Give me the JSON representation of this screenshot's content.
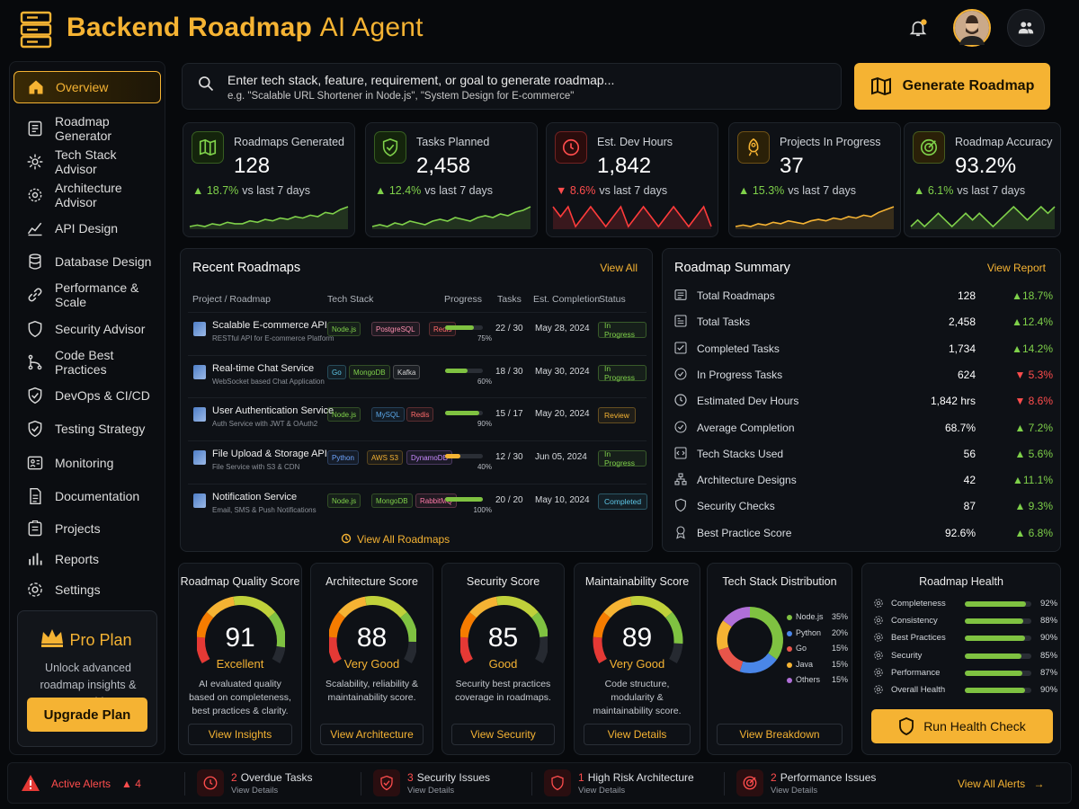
{
  "header": {
    "title_bold": "Backend Roadmap",
    "title_light": "AI Agent",
    "logo_icon": "server-stack-icon",
    "notification_icon": "bell-icon",
    "team_icon": "users-icon"
  },
  "sidebar": {
    "items": [
      {
        "label": "Overview",
        "icon": "home-icon"
      },
      {
        "label": "Roadmap Generator",
        "icon": "roadmap-icon"
      },
      {
        "label": "Tech Stack Advisor",
        "icon": "gear-icon"
      },
      {
        "label": "Architecture Advisor",
        "icon": "cog-shield-icon"
      },
      {
        "label": "API Design",
        "icon": "api-chart-icon"
      },
      {
        "label": "Database Design",
        "icon": "database-icon"
      },
      {
        "label": "Performance & Scale",
        "icon": "link-icon"
      },
      {
        "label": "Security Advisor",
        "icon": "shield-icon"
      },
      {
        "label": "Code Best Practices",
        "icon": "branch-icon"
      },
      {
        "label": "DevOps & CI/CD",
        "icon": "shield-check-icon"
      },
      {
        "label": "Testing Strategy",
        "icon": "check-shield-icon"
      },
      {
        "label": "Monitoring",
        "icon": "monitor-icon"
      },
      {
        "label": "Documentation",
        "icon": "document-icon"
      },
      {
        "label": "Projects",
        "icon": "folder-icon"
      },
      {
        "label": "Reports",
        "icon": "bar-chart-icon"
      },
      {
        "label": "Settings",
        "icon": "settings-icon"
      }
    ],
    "pro": {
      "title": "Pro Plan",
      "desc": "Unlock advanced roadmap insights & expert guidance",
      "button": "Upgrade Plan"
    }
  },
  "search": {
    "placeholder": "Enter tech stack, feature, requirement, or goal to generate roadmap...",
    "example": "e.g. \"Scalable URL Shortener in Node.js\", \"System Design for E-commerce\""
  },
  "generate_button": "Generate Roadmap",
  "stats": [
    {
      "label": "Roadmaps Generated",
      "value": "128",
      "change": "▲ 18.7%",
      "suffix": "vs last 7 days",
      "trend": "up",
      "color": "#7fd14a",
      "icon": "map-icon",
      "spark": [
        4,
        5,
        4,
        6,
        5,
        7,
        6,
        6,
        8,
        7,
        9,
        8,
        10,
        9,
        11,
        10,
        12,
        11,
        14,
        13,
        16,
        18
      ]
    },
    {
      "label": "Tasks Planned",
      "value": "2,458",
      "change": "▲ 12.4%",
      "suffix": "vs last 7 days",
      "trend": "up",
      "color": "#7fd14a",
      "icon": "shield-check-icon",
      "spark": [
        5,
        6,
        5,
        7,
        6,
        8,
        7,
        6,
        8,
        9,
        8,
        10,
        9,
        8,
        10,
        11,
        10,
        12,
        11,
        13,
        14,
        16
      ]
    },
    {
      "label": "Est. Dev Hours",
      "value": "1,842",
      "change": "▼ 8.6%",
      "suffix": "vs last 7 days",
      "trend": "down",
      "color": "#ff4d4d",
      "icon": "clock-icon",
      "spark": [
        8,
        7,
        8,
        6,
        7,
        8,
        7,
        6,
        7,
        8,
        6,
        7,
        8,
        7,
        6,
        7,
        8,
        7,
        6,
        7,
        8,
        6
      ]
    },
    {
      "label": "Projects In Progress",
      "value": "37",
      "change": "▲ 15.3%",
      "suffix": "vs last 7 days",
      "trend": "up",
      "color": "#f5b333",
      "icon": "rocket-icon",
      "spark": [
        3,
        4,
        3,
        5,
        4,
        6,
        5,
        7,
        6,
        5,
        7,
        8,
        7,
        9,
        8,
        10,
        9,
        11,
        10,
        13,
        15,
        17
      ]
    },
    {
      "label": "Roadmap Accuracy",
      "value": "93.2%",
      "change": "▲ 6.1%",
      "suffix": "vs last 7 days",
      "trend": "up",
      "color": "#7fd14a",
      "icon": "target-icon",
      "spark": [
        8,
        9,
        8,
        9,
        10,
        9,
        8,
        9,
        10,
        9,
        10,
        9,
        8,
        9,
        10,
        11,
        10,
        9,
        10,
        11,
        10,
        11
      ]
    }
  ],
  "recent": {
    "title": "Recent Roadmaps",
    "view_all": "View All",
    "columns": [
      "Project / Roadmap",
      "Tech Stack",
      "Progress",
      "Tasks",
      "Est. Completion",
      "Status"
    ],
    "rows": [
      {
        "name": "Scalable E-commerce API",
        "desc": "RESTful API for E-commerce Platform",
        "tags": [
          "Node.js",
          "PostgreSQL",
          "Redis"
        ],
        "progress": 75,
        "tasks": "22 / 30",
        "date": "May 28, 2024",
        "status": "In Progress"
      },
      {
        "name": "Real-time Chat Service",
        "desc": "WebSocket based Chat Application",
        "tags": [
          "Go",
          "MongoDB",
          "Kafka"
        ],
        "progress": 60,
        "tasks": "18 / 30",
        "date": "May 30, 2024",
        "status": "In Progress"
      },
      {
        "name": "User Authentication Service",
        "desc": "Auth Service with JWT & OAuth2",
        "tags": [
          "Node.js",
          "MySQL",
          "Redis"
        ],
        "progress": 90,
        "tasks": "15 / 17",
        "date": "May 20, 2024",
        "status": "Review"
      },
      {
        "name": "File Upload & Storage API",
        "desc": "File Service with S3 & CDN",
        "tags": [
          "Python",
          "AWS S3",
          "DynamoDB"
        ],
        "progress": 40,
        "tasks": "12 / 30",
        "date": "Jun 05, 2024",
        "status": "In Progress"
      },
      {
        "name": "Notification Service",
        "desc": "Email, SMS & Push Notifications",
        "tags": [
          "Node.js",
          "MongoDB",
          "RabbitMQ"
        ],
        "progress": 100,
        "tasks": "20 / 20",
        "date": "May 10, 2024",
        "status": "Completed"
      }
    ],
    "view_all_roadmaps": "View All Roadmaps"
  },
  "summary": {
    "title": "Roadmap Summary",
    "view_report": "View Report",
    "rows": [
      {
        "label": "Total Roadmaps",
        "value": "128",
        "change": "▲18.7%",
        "trend": "up",
        "icon": "list-icon"
      },
      {
        "label": "Total Tasks",
        "value": "2,458",
        "change": "▲12.4%",
        "trend": "up",
        "icon": "tasks-icon"
      },
      {
        "label": "Completed Tasks",
        "value": "1,734",
        "change": "▲14.2%",
        "trend": "up",
        "icon": "checkbox-icon"
      },
      {
        "label": "In Progress Tasks",
        "value": "624",
        "change": "▼ 5.3%",
        "trend": "down",
        "icon": "progress-icon"
      },
      {
        "label": "Estimated Dev Hours",
        "value": "1,842 hrs",
        "change": "▼ 8.6%",
        "trend": "down",
        "icon": "clock-icon"
      },
      {
        "label": "Average Completion",
        "value": "68.7%",
        "change": "▲ 7.2%",
        "trend": "up",
        "icon": "check-circle-icon"
      },
      {
        "label": "Tech Stacks Used",
        "value": "56",
        "change": "▲ 5.6%",
        "trend": "up",
        "icon": "code-icon"
      },
      {
        "label": "Architecture Designs",
        "value": "42",
        "change": "▲11.1%",
        "trend": "up",
        "icon": "architecture-icon"
      },
      {
        "label": "Security Checks",
        "value": "87",
        "change": "▲ 9.3%",
        "trend": "up",
        "icon": "shield-icon"
      },
      {
        "label": "Best Practice Score",
        "value": "92.6%",
        "change": "▲ 6.8%",
        "trend": "up",
        "icon": "award-icon"
      }
    ]
  },
  "gauges": [
    {
      "title": "Roadmap Quality Score",
      "value": "91",
      "label": "Excellent",
      "desc": "AI evaluated quality based on completeness, best practices & clarity.",
      "button": "View Insights",
      "score": 91
    },
    {
      "title": "Architecture Score",
      "value": "88",
      "label": "Very Good",
      "desc": "Scalability, reliability & maintainability score.",
      "button": "View Architecture",
      "score": 88
    },
    {
      "title": "Security Score",
      "value": "85",
      "label": "Good",
      "desc": "Security best practices coverage in roadmaps.",
      "button": "View Security",
      "score": 85
    },
    {
      "title": "Maintainability Score",
      "value": "89",
      "label": "Very Good",
      "desc": "Code structure, modularity & maintainability score.",
      "button": "View Details",
      "score": 89
    }
  ],
  "tech_dist": {
    "title": "Tech Stack Distribution",
    "button": "View Breakdown",
    "items": [
      {
        "name": "Node.js",
        "pct": "35%",
        "value": 35,
        "color": "#7fc241"
      },
      {
        "name": "Python",
        "pct": "20%",
        "value": 20,
        "color": "#4a86e8"
      },
      {
        "name": "Go",
        "pct": "15%",
        "value": 15,
        "color": "#e8554a"
      },
      {
        "name": "Java",
        "pct": "15%",
        "value": 15,
        "color": "#f5b333"
      },
      {
        "name": "Others",
        "pct": "15%",
        "value": 15,
        "color": "#b06fd8"
      }
    ]
  },
  "health": {
    "title": "Roadmap Health",
    "button": "Run Health Check",
    "rows": [
      {
        "label": "Completeness",
        "pct": "92%",
        "value": 92
      },
      {
        "label": "Consistency",
        "pct": "88%",
        "value": 88
      },
      {
        "label": "Best Practices",
        "pct": "90%",
        "value": 90
      },
      {
        "label": "Security",
        "pct": "85%",
        "value": 85
      },
      {
        "label": "Performance",
        "pct": "87%",
        "value": 87
      },
      {
        "label": "Overall Health",
        "pct": "90%",
        "value": 90
      }
    ]
  },
  "alerts": {
    "label": "Active Alerts",
    "count": "▲ 4",
    "items": [
      {
        "num": "2",
        "text": "Overdue Tasks",
        "sub": "View Details",
        "icon": "clock-alert-icon"
      },
      {
        "num": "3",
        "text": "Security Issues",
        "sub": "View Details",
        "icon": "shield-alert-icon"
      },
      {
        "num": "1",
        "text": "High Risk Architecture",
        "sub": "View Details",
        "icon": "architecture-alert-icon"
      },
      {
        "num": "2",
        "text": "Performance Issues",
        "sub": "View Details",
        "icon": "performance-alert-icon"
      }
    ],
    "view_all": "View All Alerts"
  },
  "colors": {
    "accent": "#f5b333",
    "up": "#7fd14a",
    "down": "#ff4d4d"
  }
}
